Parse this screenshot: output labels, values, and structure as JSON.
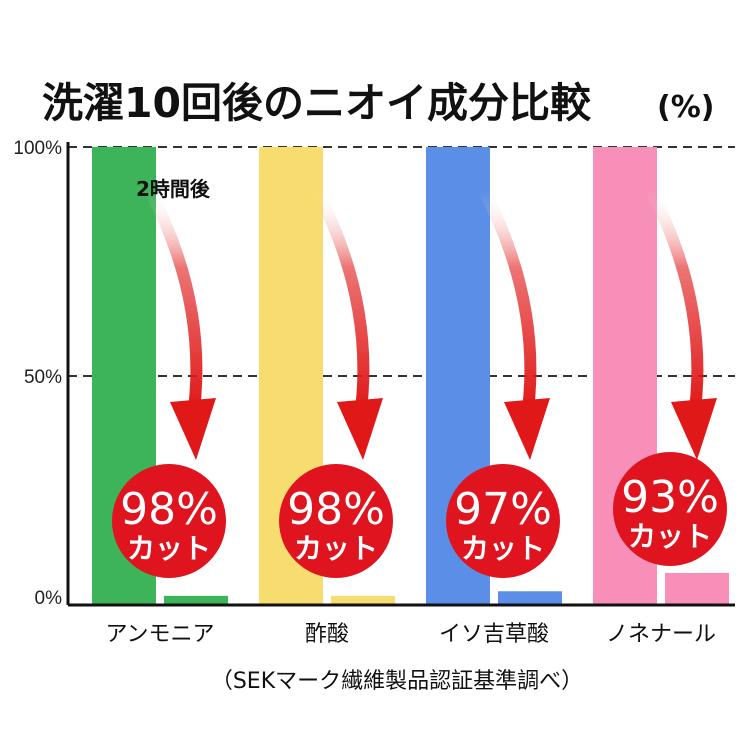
{
  "chart_data": {
    "type": "bar",
    "title": "洗濯10回後のニオイ成分比較",
    "title_suffix": "(%)",
    "categories": [
      "アンモニア",
      "酢酸",
      "イソ吉草酸",
      "ノネナール"
    ],
    "series": [
      {
        "values": [
          100,
          100,
          100,
          100
        ]
      },
      {
        "values": [
          2,
          2,
          3,
          7
        ]
      }
    ],
    "colors": [
      "#3db35a",
      "#f7dc6f",
      "#5b8ee6",
      "#f78fb8"
    ],
    "badges": [
      {
        "pct": "98%",
        "text": "カット"
      },
      {
        "pct": "98%",
        "text": "カット"
      },
      {
        "pct": "97%",
        "text": "カット"
      },
      {
        "pct": "93%",
        "text": "カット"
      }
    ],
    "annotation": "2時間後",
    "yticks": [
      "100%",
      "50%",
      "0%"
    ],
    "ytick_values": [
      100,
      50,
      0
    ],
    "ylim": [
      0,
      100
    ],
    "grid": "dashed",
    "badge_color": "#e0141e",
    "arrow_color": "#e01818",
    "source": "（SEKマーク繊維製品認証基準調べ）"
  }
}
